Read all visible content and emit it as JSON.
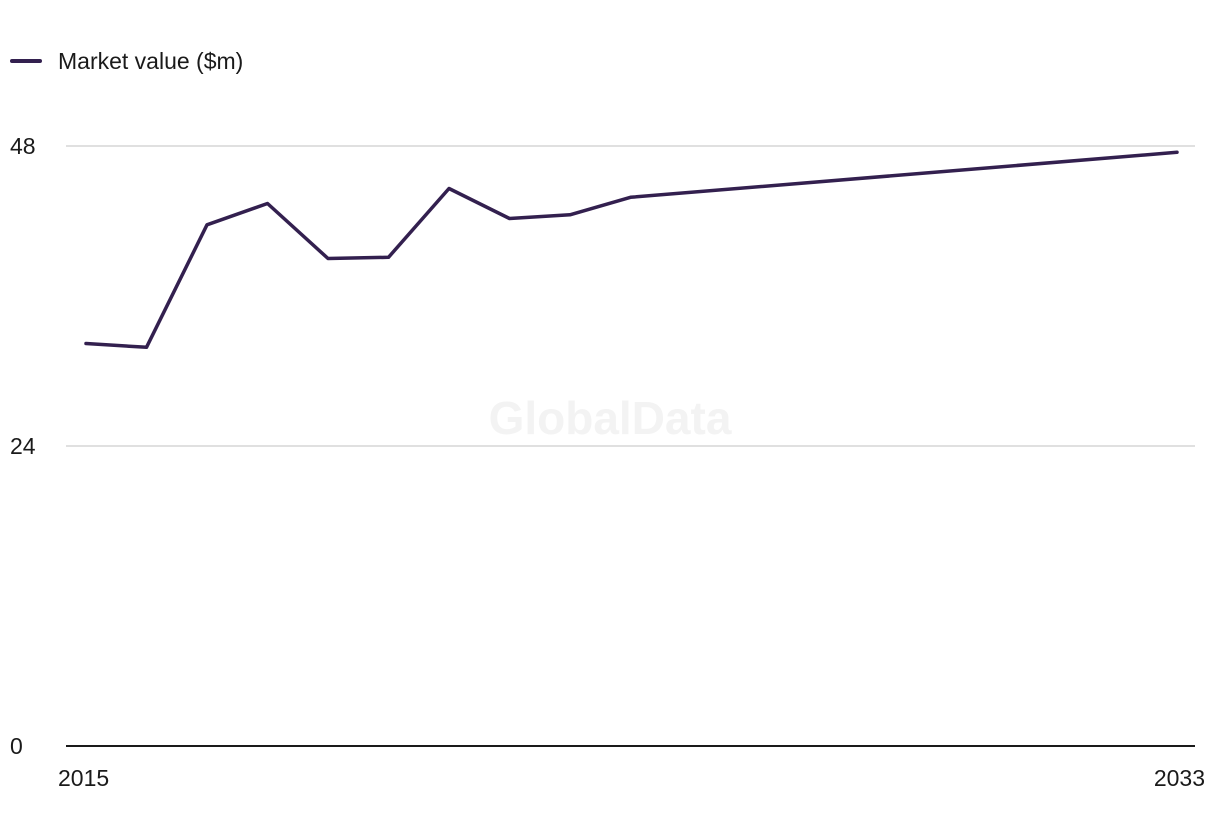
{
  "watermark": "GlobalData",
  "colors": {
    "series": "#33204f",
    "gridline": "#d6d6d6",
    "axis": "#1a1a1a",
    "watermark": "#f3f3f3"
  },
  "chart_data": {
    "type": "line",
    "title": "",
    "xlabel": "",
    "ylabel": "",
    "x": [
      2015,
      2016,
      2017,
      2018,
      2019,
      2020,
      2021,
      2022,
      2023,
      2024,
      2033
    ],
    "x_tick_labels": [
      "2015",
      "2033"
    ],
    "y_tick_values": [
      0,
      24,
      48
    ],
    "y_tick_labels": [
      "0",
      "24",
      "48"
    ],
    "ylim": [
      0,
      48
    ],
    "xlim": [
      2015,
      2033
    ],
    "grid": true,
    "legend_position": "top-left",
    "series": [
      {
        "name": "Market value ($m)",
        "values": [
          32.2,
          31.9,
          41.7,
          43.4,
          39.0,
          39.1,
          44.6,
          42.2,
          42.5,
          43.9,
          47.5
        ]
      }
    ]
  }
}
